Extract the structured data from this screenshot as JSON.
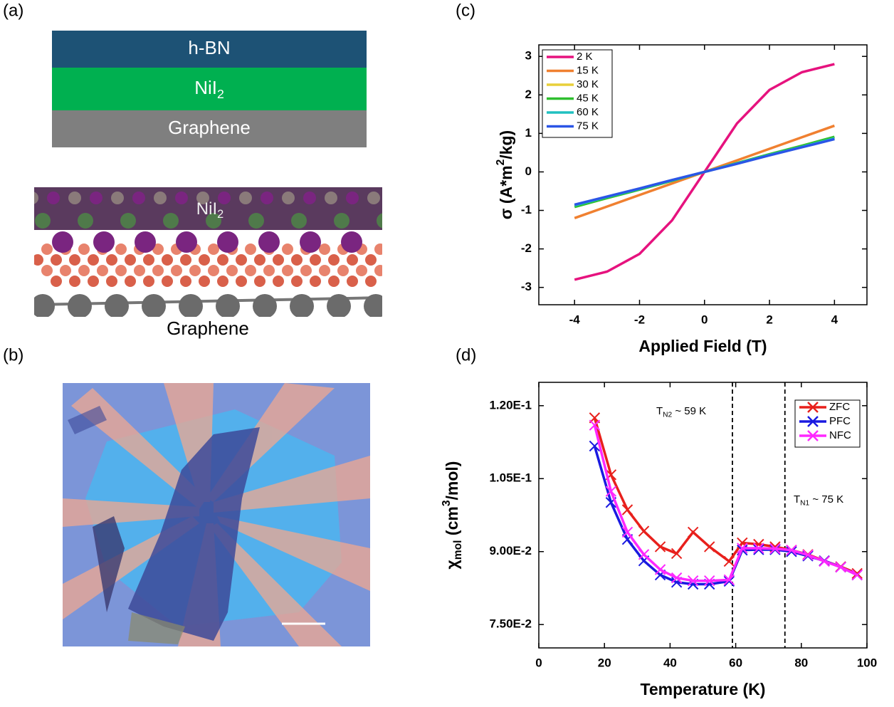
{
  "panel_labels": [
    "(a)",
    "(b)",
    "(c)",
    "(d)"
  ],
  "panel_a": {
    "layers": [
      {
        "parts": [
          "h-BN"
        ],
        "color": "#1d5275"
      },
      {
        "parts": [
          "NiI",
          "2"
        ],
        "color": "#00b050"
      },
      {
        "parts": [
          "Graphene"
        ],
        "color": "#7f7f7f"
      }
    ],
    "structure_labels": [
      [
        "NiI",
        "2"
      ],
      [
        "Graphene"
      ]
    ]
  },
  "chart_data": [
    {
      "type": "line",
      "xlabel": "Applied Field (T)",
      "ylabel": [
        "σ (A*m",
        "2",
        "/kg)"
      ],
      "x": [
        -4,
        -3,
        -2,
        -1,
        0,
        1,
        2,
        3,
        4
      ],
      "xlim": [
        -5.1,
        5.0
      ],
      "xticks": [
        -4,
        -2,
        0,
        2,
        4
      ],
      "ylim": [
        -3.45,
        3.3
      ],
      "yticks": [
        -3,
        -2,
        -1,
        0,
        1,
        2,
        3
      ],
      "legend": "upper left",
      "series": [
        {
          "name": "2 K",
          "color": "#e6127e",
          "values": [
            -2.8,
            -2.59,
            -2.13,
            -1.26,
            0,
            1.26,
            2.13,
            2.59,
            2.8
          ]
        },
        {
          "name": "15 K",
          "color": "#f08030",
          "values": [
            -1.2,
            -0.9,
            -0.6,
            -0.3,
            0,
            0.3,
            0.6,
            0.9,
            1.2
          ]
        },
        {
          "name": "30 K",
          "color": "#e8cf3a",
          "values": [
            -0.9,
            -0.68,
            -0.45,
            -0.23,
            0,
            0.23,
            0.45,
            0.68,
            0.9
          ]
        },
        {
          "name": "45 K",
          "color": "#2fbf2f",
          "values": [
            -0.91,
            -0.68,
            -0.46,
            -0.23,
            0,
            0.23,
            0.46,
            0.68,
            0.91
          ]
        },
        {
          "name": "60 K",
          "color": "#20c0c0",
          "values": [
            -0.87,
            -0.65,
            -0.44,
            -0.22,
            0,
            0.22,
            0.44,
            0.65,
            0.87
          ]
        },
        {
          "name": "75 K",
          "color": "#2b55e6",
          "values": [
            -0.85,
            -0.64,
            -0.43,
            -0.21,
            0,
            0.21,
            0.43,
            0.64,
            0.85
          ]
        }
      ]
    },
    {
      "type": "line",
      "markers": "x",
      "xlabel": "Temperature (K)",
      "ylabel": [
        "χ",
        "mol",
        " (cm",
        "3",
        "/mol)"
      ],
      "x": [
        17,
        22,
        27,
        32,
        37,
        42,
        47,
        52,
        58,
        62,
        67,
        72,
        77,
        82,
        87,
        92,
        97
      ],
      "xlim": [
        0,
        100
      ],
      "xticks": [
        0,
        20,
        40,
        60,
        80,
        100
      ],
      "ylim": [
        0.0702,
        0.1248
      ],
      "yticks": [
        {
          "value": 0.075,
          "label": "7.50E-2"
        },
        {
          "value": 0.09,
          "label": "9.00E-2"
        },
        {
          "value": 0.105,
          "label": "1.05E-1"
        },
        {
          "value": 0.12,
          "label": "1.20E-1"
        }
      ],
      "legend": "upper right",
      "vlines": [
        59,
        75
      ],
      "annotations": [
        [
          "T",
          "N2",
          " ~ 59 K"
        ],
        [
          "T",
          "N1",
          " ~ 75 K"
        ]
      ],
      "series": [
        {
          "name": "ZFC",
          "color": "#e8201c",
          "values": [
            0.1175,
            0.1058,
            0.0986,
            0.0942,
            0.091,
            0.0896,
            0.094,
            0.091,
            0.088,
            0.0918,
            0.0915,
            0.091,
            0.0903,
            0.0894,
            0.0881,
            0.0869,
            0.0855
          ]
        },
        {
          "name": "PFC",
          "color": "#1a1ae0",
          "values": [
            0.1117,
            0.1001,
            0.0925,
            0.0881,
            0.0852,
            0.0837,
            0.0833,
            0.0833,
            0.0839,
            0.0903,
            0.0904,
            0.0904,
            0.09,
            0.0891,
            0.0881,
            0.0868,
            0.0852
          ]
        },
        {
          "name": "NFC",
          "color": "#ff28ff",
          "values": [
            0.116,
            0.1024,
            0.094,
            0.0894,
            0.0863,
            0.0846,
            0.084,
            0.084,
            0.0842,
            0.0907,
            0.0907,
            0.0906,
            0.0903,
            0.0893,
            0.088,
            0.0868,
            0.0852
          ]
        }
      ]
    }
  ]
}
